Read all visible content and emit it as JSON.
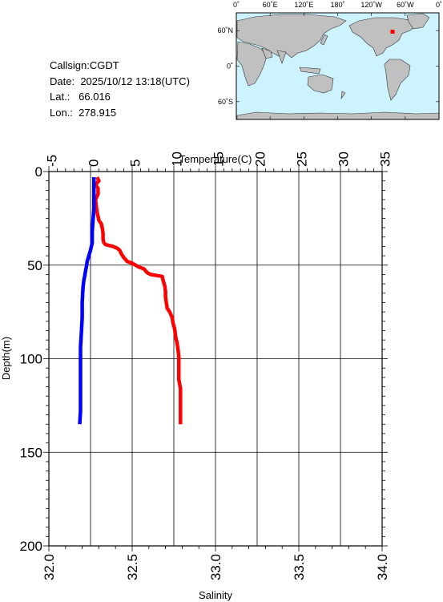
{
  "station": {
    "callsign_label": "Callsign:",
    "callsign": "CGDT",
    "date_label": "Date:",
    "date": "2025/10/12 13:18(UTC)",
    "lat_label": "Lat.:",
    "lat": "66.016",
    "lon_label": "Lon.:",
    "lon": "278.915"
  },
  "map": {
    "top_labels": [
      "0˚",
      "60˚E",
      "120˚E",
      "180˚",
      "120˚W",
      "60˚W",
      "0˚"
    ],
    "left_labels": [
      "60˚N",
      "0˚",
      "60˚S"
    ],
    "ocean_color": "#cdf3ff",
    "land_color": "#c0c0c0",
    "marker_color": "#ff0000"
  },
  "chart_data": {
    "type": "line",
    "ylabel": "Depth(m)",
    "ylim": [
      200,
      0
    ],
    "yticks": [
      0,
      50,
      100,
      150,
      200
    ],
    "top_axis": {
      "label": "Temperature(C)",
      "lim": [
        -5,
        35
      ],
      "ticks": [
        -5,
        0,
        5,
        10,
        15,
        20,
        25,
        30,
        35
      ]
    },
    "bottom_axis": {
      "label": "Salinity",
      "lim": [
        32.0,
        34.0
      ],
      "ticks": [
        "32.0",
        "32.5",
        "33.0",
        "33.5",
        "34.0"
      ]
    },
    "grid": true,
    "series": [
      {
        "axis": "temperature",
        "color": "#ff0000",
        "points": [
          [
            0.8,
            3
          ],
          [
            1.0,
            5
          ],
          [
            0.6,
            7
          ],
          [
            0.9,
            9
          ],
          [
            0.9,
            12
          ],
          [
            0.6,
            15
          ],
          [
            0.7,
            19
          ],
          [
            0.8,
            22
          ],
          [
            0.9,
            24
          ],
          [
            1.0,
            26
          ],
          [
            1.3,
            28
          ],
          [
            1.4,
            30
          ],
          [
            1.5,
            33
          ],
          [
            1.5,
            36
          ],
          [
            1.6,
            38
          ],
          [
            1.8,
            39
          ],
          [
            2.7,
            40
          ],
          [
            3.2,
            41
          ],
          [
            3.5,
            42
          ],
          [
            3.7,
            44
          ],
          [
            4.0,
            46
          ],
          [
            4.4,
            48
          ],
          [
            5.0,
            49
          ],
          [
            5.8,
            51
          ],
          [
            6.4,
            52
          ],
          [
            6.8,
            54
          ],
          [
            7.2,
            55
          ],
          [
            8.6,
            56
          ],
          [
            8.7,
            58
          ],
          [
            8.9,
            61
          ],
          [
            9.0,
            64
          ],
          [
            9.0,
            67
          ],
          [
            9.1,
            70
          ],
          [
            9.2,
            73
          ],
          [
            9.5,
            75
          ],
          [
            9.8,
            78
          ],
          [
            9.9,
            81
          ],
          [
            10.1,
            84
          ],
          [
            10.2,
            88
          ],
          [
            10.4,
            92
          ],
          [
            10.5,
            95
          ],
          [
            10.6,
            99
          ],
          [
            10.6,
            102
          ],
          [
            10.6,
            106
          ],
          [
            10.6,
            111
          ],
          [
            10.8,
            116
          ],
          [
            10.8,
            121
          ],
          [
            10.8,
            126
          ],
          [
            10.8,
            131
          ],
          [
            10.8,
            135
          ]
        ]
      },
      {
        "axis": "salinity",
        "color": "#0000ff",
        "points": [
          [
            32.27,
            3
          ],
          [
            32.27,
            8
          ],
          [
            32.27,
            14
          ],
          [
            32.27,
            20
          ],
          [
            32.265,
            26
          ],
          [
            32.26,
            32
          ],
          [
            32.26,
            38
          ],
          [
            32.25,
            42
          ],
          [
            32.24,
            45
          ],
          [
            32.23,
            48
          ],
          [
            32.225,
            51
          ],
          [
            32.22,
            53
          ],
          [
            32.215,
            56
          ],
          [
            32.21,
            58
          ],
          [
            32.205,
            62
          ],
          [
            32.2,
            70
          ],
          [
            32.2,
            78
          ],
          [
            32.195,
            86
          ],
          [
            32.19,
            94
          ],
          [
            32.19,
            102
          ],
          [
            32.19,
            110
          ],
          [
            32.19,
            120
          ],
          [
            32.19,
            128
          ],
          [
            32.185,
            135
          ]
        ]
      }
    ]
  }
}
